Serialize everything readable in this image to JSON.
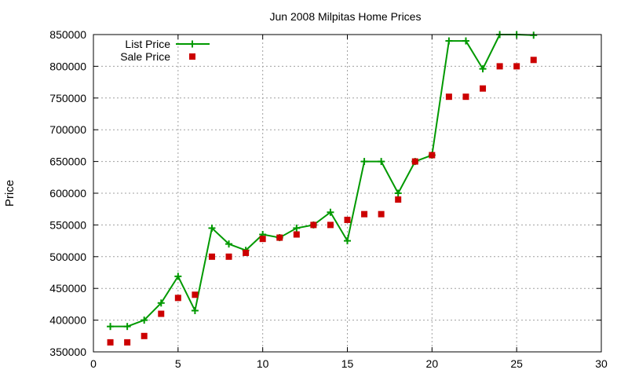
{
  "chart_data": {
    "type": "line",
    "title": "Jun 2008 Milpitas Home Prices",
    "xlabel": "",
    "ylabel": "Price",
    "xlim": [
      0,
      30
    ],
    "ylim": [
      350000,
      850000
    ],
    "x_ticks": [
      "0",
      "5",
      "10",
      "15",
      "20",
      "25",
      "30"
    ],
    "y_ticks": [
      "350000",
      "400000",
      "450000",
      "500000",
      "550000",
      "600000",
      "650000",
      "700000",
      "750000",
      "800000",
      "850000"
    ],
    "grid": true,
    "legend_position": "top-left",
    "series": [
      {
        "name": "List Price",
        "style": "linespoints",
        "marker": "plus",
        "color": "#009900",
        "x": [
          1,
          2,
          3,
          4,
          5,
          6,
          7,
          8,
          9,
          10,
          11,
          12,
          13,
          14,
          15,
          16,
          17,
          18,
          19,
          20,
          21,
          22,
          23,
          24,
          25,
          26
        ],
        "y": [
          390000,
          390000,
          400000,
          427000,
          469000,
          415000,
          545000,
          520000,
          510000,
          535000,
          530000,
          545000,
          550000,
          570000,
          525000,
          650000,
          650000,
          600000,
          650000,
          660000,
          840000,
          840000,
          796000,
          850000,
          850000,
          849000
        ]
      },
      {
        "name": "Sale Price",
        "style": "points",
        "marker": "square",
        "color": "#cc0000",
        "x": [
          1,
          2,
          3,
          4,
          5,
          6,
          7,
          8,
          9,
          10,
          11,
          12,
          13,
          14,
          15,
          16,
          17,
          18,
          19,
          20,
          21,
          22,
          23,
          24,
          25,
          26
        ],
        "y": [
          365000,
          365000,
          375000,
          410000,
          435000,
          440000,
          500000,
          500000,
          506000,
          528000,
          530000,
          535000,
          550000,
          550000,
          558000,
          567000,
          567000,
          590000,
          650000,
          660000,
          752000,
          752000,
          765000,
          800000,
          800000,
          810000
        ]
      }
    ]
  }
}
